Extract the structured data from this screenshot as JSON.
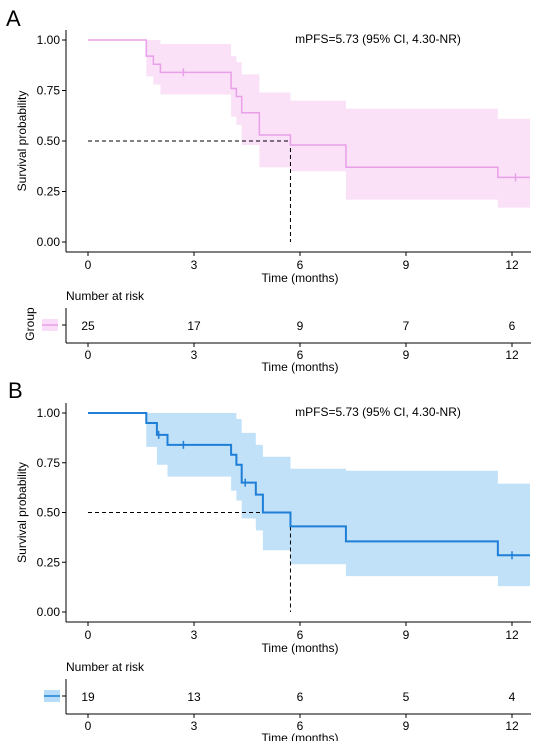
{
  "chart_data": [
    {
      "type": "line",
      "panel_label": "A",
      "ylabel": "Survival probability",
      "xlabel": "Time (months)",
      "annotation": "mPFS=5.73 (95% CI, 4.30-NR)",
      "color": "#e8a0e8",
      "band_color": "#f9dcf7",
      "xlim": [
        0,
        12.5
      ],
      "ylim": [
        0,
        1
      ],
      "x_ticks": [
        "0",
        "3",
        "6",
        "9",
        "12"
      ],
      "y_ticks": [
        "0.00",
        "0.25",
        "0.50",
        "0.75",
        "1.00"
      ],
      "median": 5.73,
      "survival": {
        "x": [
          0,
          1.65,
          1.85,
          2.05,
          2.3,
          4.05,
          4.2,
          4.35,
          4.85,
          5.73,
          7.3,
          11.6,
          12.5
        ],
        "y": [
          1.0,
          0.92,
          0.88,
          0.84,
          0.84,
          0.76,
          0.72,
          0.64,
          0.53,
          0.48,
          0.37,
          0.32,
          0.32
        ]
      },
      "ci_lower": [
        1.0,
        0.82,
        0.78,
        0.73,
        0.73,
        0.62,
        0.58,
        0.48,
        0.37,
        0.35,
        0.21,
        0.17,
        0.17
      ],
      "ci_upper": [
        1.0,
        1.0,
        1.0,
        0.98,
        0.98,
        0.92,
        0.89,
        0.83,
        0.74,
        0.7,
        0.66,
        0.61,
        0.61
      ],
      "censor_marks": [
        {
          "x": 2.7,
          "y": 0.84
        },
        {
          "x": 12.1,
          "y": 0.32
        }
      ],
      "risk_table": {
        "title": "Number at risk",
        "row_label": "Group",
        "times": [
          "0",
          "3",
          "6",
          "9",
          "12"
        ],
        "counts": [
          "25",
          "17",
          "9",
          "7",
          "6"
        ],
        "xlabel": "Time (months)"
      }
    },
    {
      "type": "line",
      "panel_label": "B",
      "ylabel": "Survival probability",
      "xlabel": "Time (months)",
      "annotation": "mPFS=5.73 (95% CI, 4.30-NR)",
      "color": "#1f7fd6",
      "band_color": "#b6dcf8",
      "xlim": [
        0,
        12.5
      ],
      "ylim": [
        0,
        1
      ],
      "x_ticks": [
        "0",
        "3",
        "6",
        "9",
        "12"
      ],
      "y_ticks": [
        "0.00",
        "0.25",
        "0.50",
        "0.75",
        "1.00"
      ],
      "median": 5.73,
      "survival": {
        "x": [
          0,
          1.65,
          1.95,
          2.25,
          4.05,
          4.2,
          4.35,
          4.75,
          4.95,
          5.73,
          7.3,
          11.6,
          12.5
        ],
        "y": [
          1.0,
          0.95,
          0.89,
          0.84,
          0.79,
          0.74,
          0.65,
          0.59,
          0.5,
          0.43,
          0.355,
          0.285,
          0.285
        ]
      },
      "ci_lower": [
        1.0,
        0.83,
        0.74,
        0.68,
        0.61,
        0.56,
        0.47,
        0.41,
        0.31,
        0.24,
        0.18,
        0.13,
        0.13
      ],
      "ci_upper": [
        1.0,
        1.0,
        1.0,
        1.0,
        1.0,
        0.97,
        0.9,
        0.84,
        0.78,
        0.72,
        0.71,
        0.645,
        0.645
      ],
      "censor_marks": [
        {
          "x": 2.0,
          "y": 0.89
        },
        {
          "x": 2.7,
          "y": 0.84
        },
        {
          "x": 4.45,
          "y": 0.65
        },
        {
          "x": 12.0,
          "y": 0.285
        }
      ],
      "risk_table": {
        "title": "Number at risk",
        "row_label": "",
        "times": [
          "0",
          "3",
          "6",
          "9",
          "12"
        ],
        "counts": [
          "19",
          "13",
          "6",
          "5",
          "4"
        ],
        "xlabel": "Time (months)"
      }
    }
  ]
}
